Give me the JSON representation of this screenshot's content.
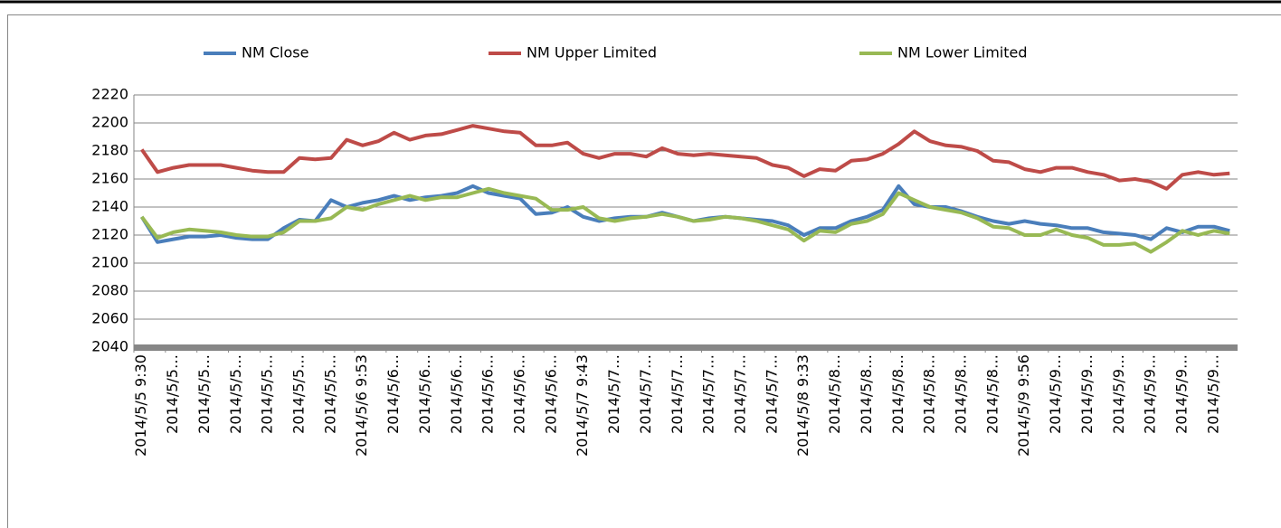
{
  "chart_data": {
    "type": "line",
    "categories": [
      "2014/5/5 9:30",
      null,
      "2014/5/5…",
      null,
      "2014/5/5…",
      null,
      "2014/5/5…",
      null,
      "2014/5/5…",
      null,
      "2014/5/5…",
      null,
      "2014/5/5…",
      null,
      "2014/5/6 9:53",
      null,
      "2014/5/6…",
      null,
      "2014/5/6…",
      null,
      "2014/5/6…",
      null,
      "2014/5/6…",
      null,
      "2014/5/6…",
      null,
      "2014/5/6…",
      null,
      "2014/5/7 9:43",
      null,
      "2014/5/7…",
      null,
      "2014/5/7…",
      null,
      "2014/5/7…",
      null,
      "2014/5/7…",
      null,
      "2014/5/7…",
      null,
      "2014/5/7…",
      null,
      "2014/5/8 9:33",
      null,
      "2014/5/8…",
      null,
      "2014/5/8…",
      null,
      "2014/5/8…",
      null,
      "2014/5/8…",
      null,
      "2014/5/8…",
      null,
      "2014/5/8…",
      null,
      "2014/5/9 9:56",
      null,
      "2014/5/9…",
      null,
      "2014/5/9…",
      null,
      "2014/5/9…",
      null,
      "2014/5/9…",
      null,
      "2014/5/9…",
      null,
      "2014/5/9…",
      null
    ],
    "series": [
      {
        "name": "NM Close",
        "color": "#4a7ebb",
        "values": [
          2133,
          2115,
          2117,
          2119,
          2119,
          2120,
          2118,
          2117,
          2117,
          2125,
          2131,
          2130,
          2145,
          2140,
          2143,
          2145,
          2148,
          2145,
          2147,
          2148,
          2150,
          2155,
          2150,
          2148,
          2146,
          2135,
          2136,
          2140,
          2133,
          2130,
          2132,
          2133,
          2133,
          2136,
          2133,
          2130,
          2132,
          2133,
          2132,
          2131,
          2130,
          2127,
          2120,
          2125,
          2125,
          2130,
          2133,
          2138,
          2155,
          2142,
          2140,
          2140,
          2137,
          2133,
          2130,
          2128,
          2130,
          2128,
          2127,
          2125,
          2125,
          2122,
          2121,
          2120,
          2117,
          2125,
          2122,
          2126,
          2126,
          2123
        ]
      },
      {
        "name": "NM Upper Limited",
        "color": "#be4b48",
        "values": [
          2181,
          2165,
          2168,
          2170,
          2170,
          2170,
          2168,
          2166,
          2165,
          2165,
          2175,
          2174,
          2175,
          2188,
          2184,
          2187,
          2193,
          2188,
          2191,
          2192,
          2195,
          2198,
          2196,
          2194,
          2193,
          2184,
          2184,
          2186,
          2178,
          2175,
          2178,
          2178,
          2176,
          2182,
          2178,
          2177,
          2178,
          2177,
          2176,
          2175,
          2170,
          2168,
          2162,
          2167,
          2166,
          2173,
          2174,
          2178,
          2185,
          2194,
          2187,
          2184,
          2183,
          2180,
          2173,
          2172,
          2167,
          2165,
          2168,
          2168,
          2165,
          2163,
          2159,
          2160,
          2158,
          2153,
          2163,
          2165,
          2163,
          2164
        ]
      },
      {
        "name": "NM Lower Limited",
        "color": "#98b954",
        "values": [
          2133,
          2118,
          2122,
          2124,
          2123,
          2122,
          2120,
          2119,
          2119,
          2122,
          2130,
          2130,
          2132,
          2140,
          2138,
          2142,
          2145,
          2148,
          2145,
          2147,
          2147,
          2150,
          2153,
          2150,
          2148,
          2146,
          2138,
          2138,
          2140,
          2132,
          2130,
          2132,
          2133,
          2135,
          2133,
          2130,
          2131,
          2133,
          2132,
          2130,
          2127,
          2124,
          2116,
          2123,
          2122,
          2128,
          2130,
          2135,
          2150,
          2145,
          2140,
          2138,
          2136,
          2132,
          2126,
          2125,
          2120,
          2120,
          2124,
          2120,
          2118,
          2113,
          2113,
          2114,
          2108,
          2115,
          2123,
          2120,
          2123,
          2121
        ]
      }
    ],
    "ylim": [
      2040,
      2220
    ],
    "yticks": [
      2040,
      2060,
      2080,
      2100,
      2120,
      2140,
      2160,
      2180,
      2200,
      2220
    ],
    "grid": true,
    "legend": "top"
  }
}
